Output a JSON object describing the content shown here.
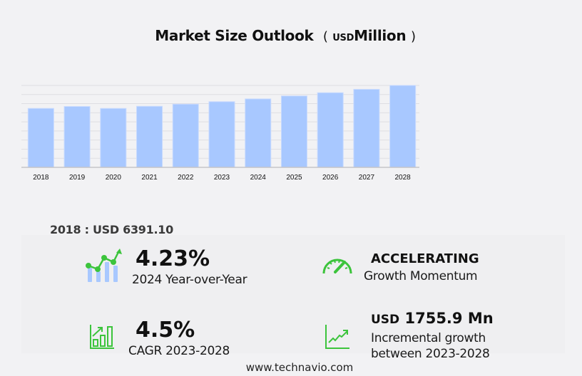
{
  "title": {
    "main": "Market Size Outlook",
    "open_paren": "(",
    "unit_small": "USD",
    "unit": "Million",
    "close_paren": ")"
  },
  "chart_data": {
    "type": "bar",
    "title": "Market Size Outlook (USD Million)",
    "xlabel": "",
    "ylabel": "",
    "categories": [
      "2018",
      "2019",
      "2020",
      "2021",
      "2022",
      "2023",
      "2024",
      "2025",
      "2026",
      "2027",
      "2028"
    ],
    "values": [
      6391.1,
      6600,
      6390,
      6620,
      6850,
      7120,
      7420,
      7740,
      8090,
      8460,
      8880
    ],
    "ylim": [
      0,
      9000
    ],
    "grid": true,
    "y_tick_labels_visible": false,
    "bar_color": "#a8c8ff",
    "legend": "none"
  },
  "summary": {
    "base_year_label": "2018 : USD  6391.10"
  },
  "stats": {
    "yoy": {
      "value": "4.23%",
      "label": "2024 Year-over-Year",
      "icon": "growth-chart-icon"
    },
    "momentum": {
      "value": "ACCELERATING",
      "label": "Growth Momentum",
      "icon": "speedometer-icon"
    },
    "cagr": {
      "value": "4.5%",
      "label": "CAGR 2023-2028",
      "icon": "bar-growth-icon"
    },
    "incremental": {
      "prefix": "USD",
      "value": "1755.9 Mn",
      "label_line1": "Incremental growth",
      "label_line2": "between 2023-2028",
      "icon": "trend-line-icon"
    }
  },
  "colors": {
    "accent_green": "#3cc43c",
    "bar_blue": "#a8c8ff",
    "background": "#f2f2f4"
  },
  "footer": {
    "url": "www.technavio.com"
  }
}
